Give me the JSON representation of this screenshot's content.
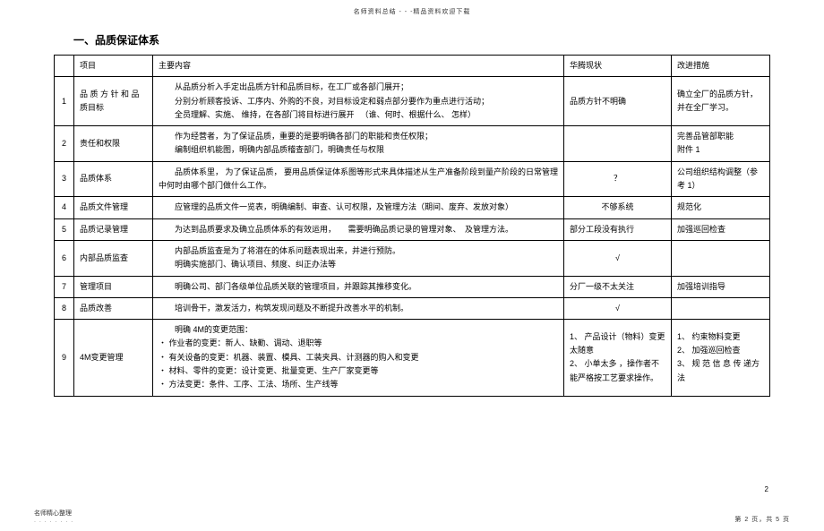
{
  "header_text": "名师资料总结 - - -精品资料欢迎下载",
  "title": "一、品质保证体系",
  "columns": {
    "idx": "",
    "project": "项目",
    "main": "主要内容",
    "status": "华腾现状",
    "improve": "改进措施"
  },
  "rows": [
    {
      "idx": "1",
      "project": "品 质 方 针 和 品质目标",
      "main": "　　从品质分析入手定出品质方针和品质目标，在工厂或各部门展开；\n　　分别分析顾客投诉、工序内、外购的不良，对目标设定和弱点部分要作为重点进行活动；\n　　全员理解、实施、 维持，在各部门将目标进行展开 　（谁、何时、根据什么、 怎样）",
      "status": "品质方针不明确",
      "improve": "确立全厂的品质方针，并在全厂学习。"
    },
    {
      "idx": "2",
      "project": "责任和权限",
      "main": "　　作为经营者，为了保证品质，重要的是要明确各部门的职能和责任权限；\n　　编制组织机能图，明确内部品质稽查部门，明确责任与权限",
      "status": "",
      "improve": "完善品管部职能\n附件  1"
    },
    {
      "idx": "3",
      "project": "品质体系",
      "main": "　　品质体系里， 为了保证品质， 要用品质保证体系图等形式来具体描述从生产准备阶段到量产阶段的日常管理中何时由哪个部门做什么工作。",
      "status": "？",
      "status_center": true,
      "improve": "公司组织结构调整（参考  1）"
    },
    {
      "idx": "4",
      "project": "品质文件管理",
      "main": "　　应管理的品质文件一览表，明确编制、审查、认可权限，及管理方法（期间、废弃、发放对象）",
      "status": "不够系统",
      "status_center": true,
      "improve": "规范化"
    },
    {
      "idx": "5",
      "project": "品质记录管理",
      "main": "　　为达到品质要求及确立品质体系的有效运用，　　需要明确品质记录的管理对象、　及管理方法。",
      "status": "部分工段没有执行",
      "improve": "加强巡回检查"
    },
    {
      "idx": "6",
      "project": "内部品质监查",
      "main": "　　内部品质监查是为了将潜在的体系问题表现出来，并进行预防。\n　　明确实施部门、确认项目、频度、纠正办法等",
      "status": "√",
      "status_center": true,
      "improve": ""
    },
    {
      "idx": "7",
      "project": "管理项目",
      "main": "　　明确公司、部门各级单位品质关联的管理项目，并跟踪其推移变化。",
      "status": "分厂一级不太关注",
      "improve": "加强培训指导"
    },
    {
      "idx": "8",
      "project": "品质改善",
      "main": "　　培训骨干，激发活力，构筑发现问题及不断提升改善水平的机制。",
      "status": "√",
      "status_center": true,
      "improve": ""
    },
    {
      "idx": "9",
      "project": "4M变更管理",
      "main": "　　明确  4M的变更范围：\n・  作业者的变更：新人、缺勤、调动、退职等\n・  有关设备的变更：机器、装置、模具、工装夹具、计测器的购入和变更\n・  材料、零件的变更：设计变更、批量变更、生产厂家变更等\n・  方法变更：条件、工序、工法、场所、生产线等",
      "status": "1、 产品设计（物料）变更太随意\n2、 小单太多 ，操作者不能严格按工艺要求操作。",
      "improve": "1、 约束物料变更\n2、 加强巡回检查\n3、 规 范 信 息 传 递方法"
    }
  ],
  "page_number_side": "2",
  "footer_left_main": "名师精心整理",
  "footer_left_dots": ". . . . . . . .",
  "footer_right": "第 2 页，共 5 页"
}
